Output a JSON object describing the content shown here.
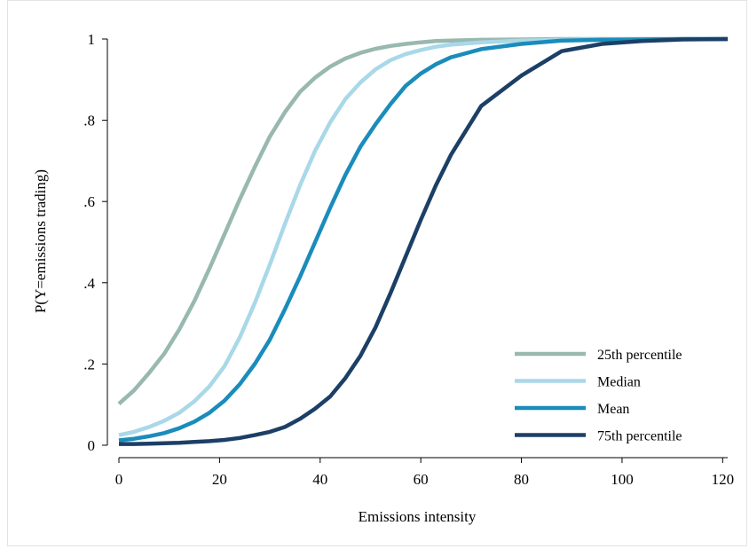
{
  "chart_data": {
    "type": "line",
    "xlabel": "Emissions intensity",
    "ylabel": "P(Y=emissions trading)",
    "xlim": [
      0,
      121
    ],
    "ylim": [
      0,
      1
    ],
    "x_ticks": [
      "0",
      "20",
      "40",
      "60",
      "80",
      "100",
      "120"
    ],
    "y_ticks": [
      "0",
      ".2",
      ".4",
      ".6",
      ".8",
      "1"
    ],
    "grid": false,
    "legend_position": "bottom-right",
    "x": [
      0,
      3,
      6,
      9,
      12,
      15,
      18,
      21,
      24,
      27,
      30,
      33,
      36,
      39,
      42,
      45,
      48,
      51,
      54,
      57,
      60,
      63,
      66,
      72,
      80,
      88,
      96,
      104,
      112,
      121
    ],
    "series": [
      {
        "name": "25th percentile",
        "color": "#98b8b0",
        "values": [
          0.102,
          0.135,
          0.178,
          0.225,
          0.285,
          0.355,
          0.435,
          0.52,
          0.605,
          0.685,
          0.76,
          0.82,
          0.87,
          0.905,
          0.932,
          0.952,
          0.966,
          0.976,
          0.983,
          0.988,
          0.992,
          0.995,
          0.996,
          0.998,
          0.999,
          1.0,
          1.0,
          1.0,
          1.0,
          1.0
        ]
      },
      {
        "name": "Median",
        "color": "#a9d8e8",
        "values": [
          0.025,
          0.033,
          0.045,
          0.06,
          0.08,
          0.108,
          0.145,
          0.195,
          0.265,
          0.35,
          0.445,
          0.545,
          0.64,
          0.725,
          0.795,
          0.852,
          0.893,
          0.925,
          0.948,
          0.963,
          0.973,
          0.981,
          0.986,
          0.992,
          0.996,
          0.998,
          0.999,
          1.0,
          1.0,
          1.0
        ]
      },
      {
        "name": "Mean",
        "color": "#1a8cbb",
        "values": [
          0.012,
          0.016,
          0.022,
          0.03,
          0.042,
          0.058,
          0.08,
          0.11,
          0.15,
          0.2,
          0.26,
          0.335,
          0.415,
          0.5,
          0.585,
          0.665,
          0.735,
          0.79,
          0.84,
          0.885,
          0.915,
          0.938,
          0.955,
          0.975,
          0.988,
          0.996,
          0.998,
          0.999,
          1.0,
          1.0
        ]
      },
      {
        "name": "75th percentile",
        "color": "#1c3f66",
        "values": [
          0.003,
          0.003,
          0.004,
          0.005,
          0.006,
          0.008,
          0.01,
          0.013,
          0.018,
          0.025,
          0.033,
          0.045,
          0.065,
          0.09,
          0.12,
          0.165,
          0.22,
          0.29,
          0.375,
          0.465,
          0.555,
          0.64,
          0.715,
          0.835,
          0.91,
          0.97,
          0.988,
          0.995,
          0.999,
          1.0
        ]
      }
    ]
  }
}
